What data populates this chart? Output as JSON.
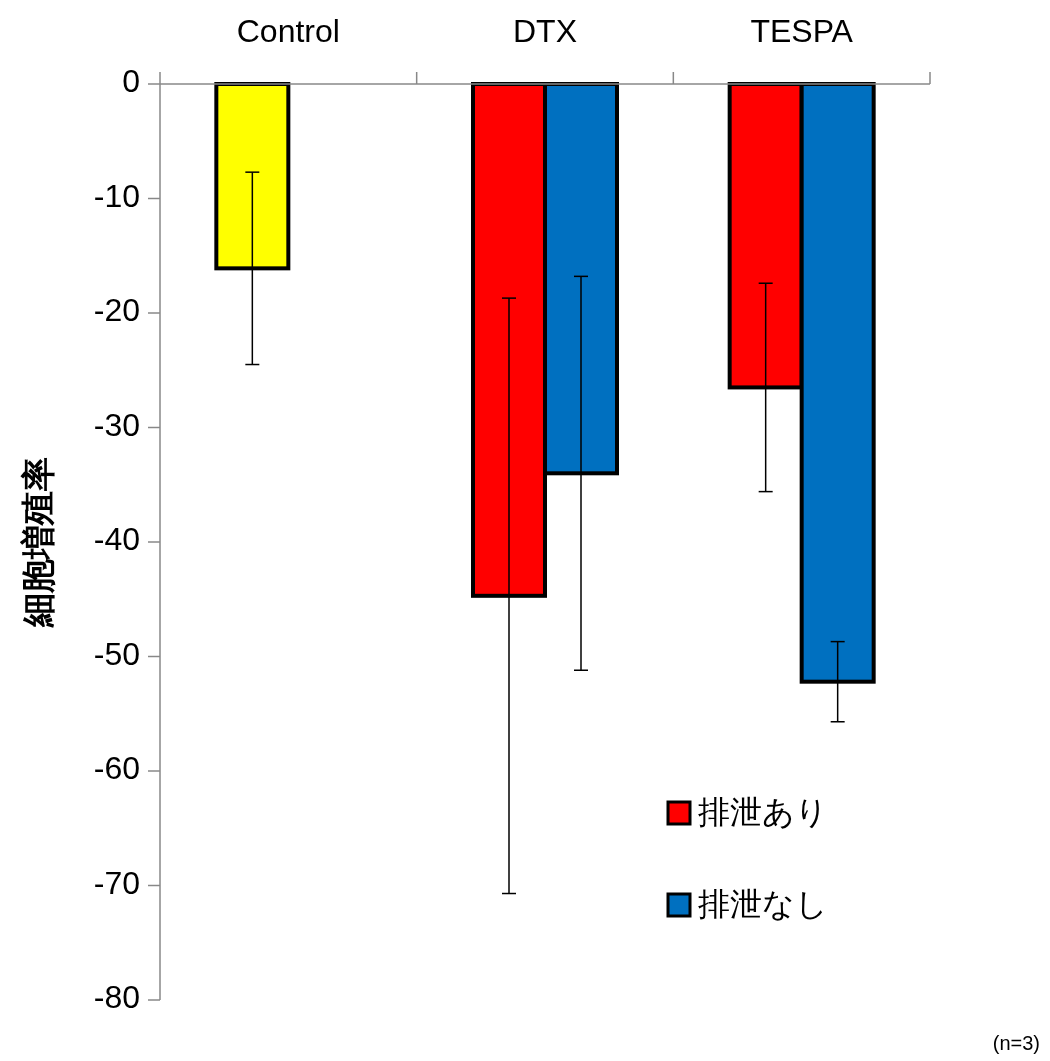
{
  "chart_data": {
    "type": "bar",
    "ylabel": "細胞増殖率",
    "categories": [
      "Control",
      "DTX",
      "TESPA"
    ],
    "series": [
      {
        "name": "排泄あり",
        "color": "#ff0000",
        "colors": [
          "#ffff00",
          "#ff0000",
          "#ff0000"
        ],
        "values": [
          -16.1,
          -44.7,
          -26.5
        ],
        "errors": [
          8.4,
          26,
          9.1
        ]
      },
      {
        "name": "排泄なし",
        "color": "#0070c0",
        "values": [
          null,
          -34,
          -52.2
        ],
        "errors": [
          null,
          17.2,
          3.5
        ]
      }
    ],
    "ylim": [
      -80,
      0
    ],
    "yticks": [
      0,
      -10,
      -20,
      -30,
      -40,
      -50,
      -60,
      -70,
      -80
    ],
    "grid": false,
    "legend": "bottom right",
    "annotations": [
      "(n=3)"
    ]
  }
}
